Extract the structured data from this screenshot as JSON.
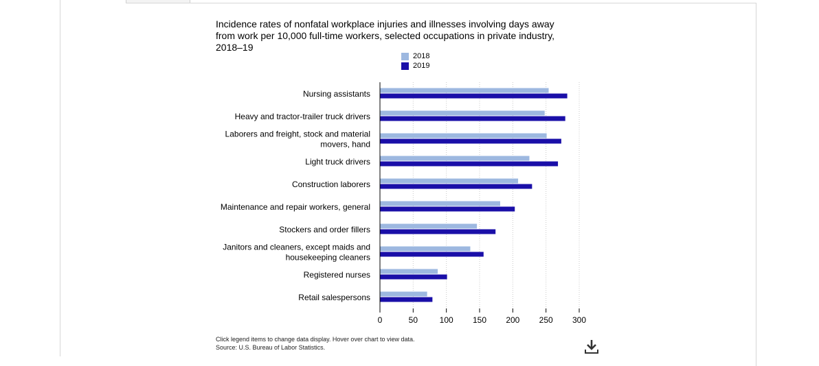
{
  "chart_data": {
    "type": "bar",
    "orientation": "horizontal",
    "title": "Incidence rates of nonfatal workplace injuries and illnesses involving days away from work per 10,000 full-time workers, selected occupations in private industry, 2018–19",
    "categories": [
      [
        "Nursing assistants"
      ],
      [
        "Heavy and tractor-trailer truck drivers"
      ],
      [
        "Laborers and freight, stock and material",
        "movers, hand"
      ],
      [
        "Light truck drivers"
      ],
      [
        "Construction laborers"
      ],
      [
        "Maintenance and repair workers, general"
      ],
      [
        "Stockers and order fillers"
      ],
      [
        "Janitors and cleaners, except maids and",
        "housekeeping cleaners"
      ],
      [
        "Registered nurses"
      ],
      [
        "Retail salespersons"
      ]
    ],
    "series": [
      {
        "name": "2018",
        "color": "#9db8e0",
        "values": [
          254,
          248,
          251,
          225,
          208,
          181,
          146,
          136,
          87,
          71
        ]
      },
      {
        "name": "2019",
        "color": "#1a0fa8",
        "values": [
          282,
          279,
          273,
          268,
          229,
          203,
          174,
          156,
          101,
          79
        ]
      }
    ],
    "xlim": [
      0,
      300
    ],
    "xticks": [
      0,
      50,
      100,
      150,
      200,
      250,
      300
    ],
    "grid": "vertical dotted",
    "legend_position": "top-center"
  },
  "notes": {
    "interaction": "Click legend items to change data display. Hover over chart to view data.",
    "source": "Source: U.S. Bureau of Labor Statistics."
  },
  "download_icon": "download-icon"
}
